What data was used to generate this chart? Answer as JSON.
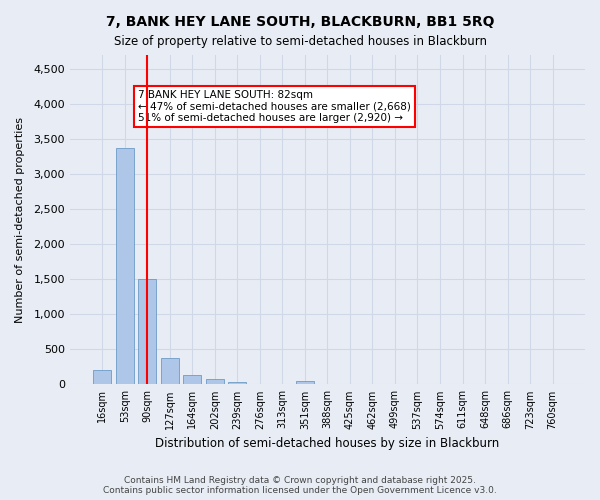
{
  "title1": "7, BANK HEY LANE SOUTH, BLACKBURN, BB1 5RQ",
  "title2": "Size of property relative to semi-detached houses in Blackburn",
  "xlabel": "Distribution of semi-detached houses by size in Blackburn",
  "ylabel": "Number of semi-detached properties",
  "categories": [
    "16sqm",
    "53sqm",
    "90sqm",
    "127sqm",
    "164sqm",
    "202sqm",
    "239sqm",
    "276sqm",
    "313sqm",
    "351sqm",
    "388sqm",
    "425sqm",
    "462sqm",
    "499sqm",
    "537sqm",
    "574sqm",
    "611sqm",
    "648sqm",
    "686sqm",
    "723sqm",
    "760sqm"
  ],
  "values": [
    200,
    3380,
    1500,
    370,
    130,
    80,
    40,
    0,
    0,
    50,
    0,
    0,
    0,
    0,
    0,
    0,
    0,
    0,
    0,
    0,
    0
  ],
  "bar_color": "#aec6e8",
  "bar_edge_color": "#5a8fc0",
  "vline_x": 2,
  "vline_color": "red",
  "annotation_text": "7 BANK HEY LANE SOUTH: 82sqm\n← 47% of semi-detached houses are smaller (2,668)\n51% of semi-detached houses are larger (2,920) →",
  "annotation_box_color": "white",
  "annotation_box_edge_color": "red",
  "ylim": [
    0,
    4700
  ],
  "yticks": [
    0,
    500,
    1000,
    1500,
    2000,
    2500,
    3000,
    3500,
    4000,
    4500
  ],
  "grid_color": "#d0d8e8",
  "background_color": "#e8edf5",
  "footer": "Contains HM Land Registry data © Crown copyright and database right 2025.\nContains public sector information licensed under the Open Government Licence v3.0."
}
